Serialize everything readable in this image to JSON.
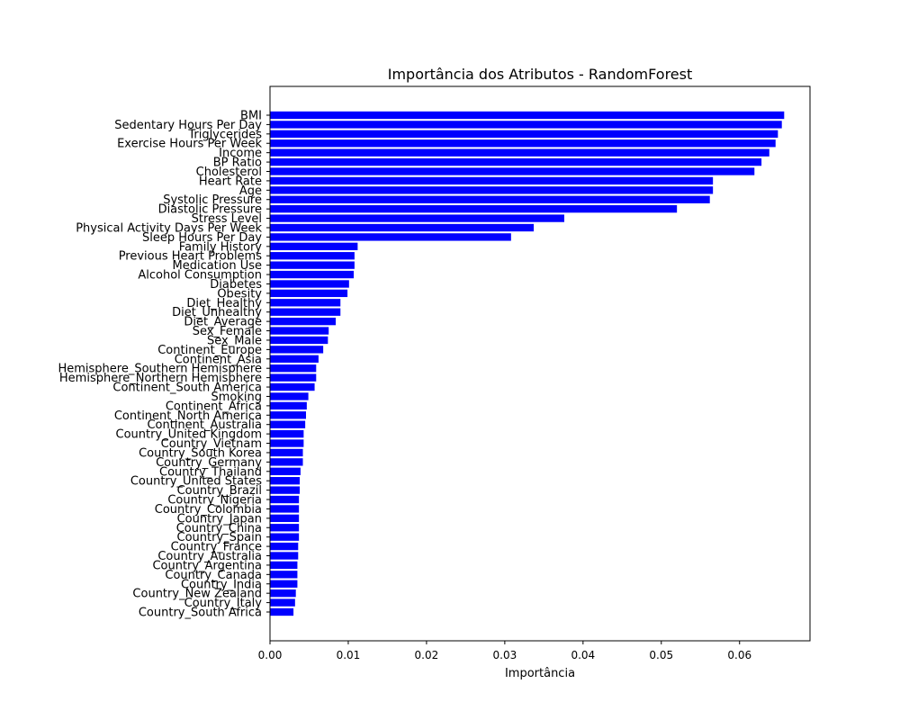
{
  "chart_data": {
    "type": "bar",
    "orientation": "horizontal",
    "title": "Importância dos Atributos - RandomForest",
    "xlabel": "Importância",
    "ylabel": "",
    "xlim": [
      0,
      0.069
    ],
    "xticks": [
      "0.00",
      "0.01",
      "0.02",
      "0.03",
      "0.04",
      "0.05",
      "0.06"
    ],
    "bar_color": "#0000ff",
    "grid": false,
    "categories": [
      "BMI",
      "Sedentary Hours Per Day",
      "Triglycerides",
      "Exercise Hours Per Week",
      "Income",
      "BP Ratio",
      "Cholesterol",
      "Heart Rate",
      "Age",
      "Systolic Pressure",
      "Diastolic Pressure",
      "Stress Level",
      "Physical Activity Days Per Week",
      "Sleep Hours Per Day",
      "Family History",
      "Previous Heart Problems",
      "Medication Use",
      "Alcohol Consumption",
      "Diabetes",
      "Obesity",
      "Diet_Healthy",
      "Diet_Unhealthy",
      "Diet_Average",
      "Sex_Female",
      "Sex_Male",
      "Continent_Europe",
      "Continent_Asia",
      "Hemisphere_Southern Hemisphere",
      "Hemisphere_Northern Hemisphere",
      "Continent_South America",
      "Smoking",
      "Continent_Africa",
      "Continent_North America",
      "Continent_Australia",
      "Country_United Kingdom",
      "Country_Vietnam",
      "Country_South Korea",
      "Country_Germany",
      "Country_Thailand",
      "Country_United States",
      "Country_Brazil",
      "Country_Nigeria",
      "Country_Colombia",
      "Country_Japan",
      "Country_China",
      "Country_Spain",
      "Country_France",
      "Country_Australia",
      "Country_Argentina",
      "Country_Canada",
      "Country_India",
      "Country_New Zealand",
      "Country_Italy",
      "Country_South Africa"
    ],
    "values": [
      0.0657,
      0.0654,
      0.0649,
      0.0646,
      0.0638,
      0.0628,
      0.0619,
      0.0566,
      0.0566,
      0.0562,
      0.052,
      0.0376,
      0.0337,
      0.0308,
      0.0112,
      0.0108,
      0.0108,
      0.0107,
      0.0101,
      0.0099,
      0.009,
      0.009,
      0.0084,
      0.0075,
      0.0074,
      0.0068,
      0.0062,
      0.0059,
      0.0059,
      0.0057,
      0.0049,
      0.0047,
      0.0046,
      0.0045,
      0.0043,
      0.0043,
      0.0042,
      0.0042,
      0.0039,
      0.0038,
      0.0038,
      0.0037,
      0.0037,
      0.0037,
      0.0037,
      0.0037,
      0.0036,
      0.0036,
      0.0035,
      0.0035,
      0.0035,
      0.0033,
      0.0032,
      0.003
    ]
  }
}
